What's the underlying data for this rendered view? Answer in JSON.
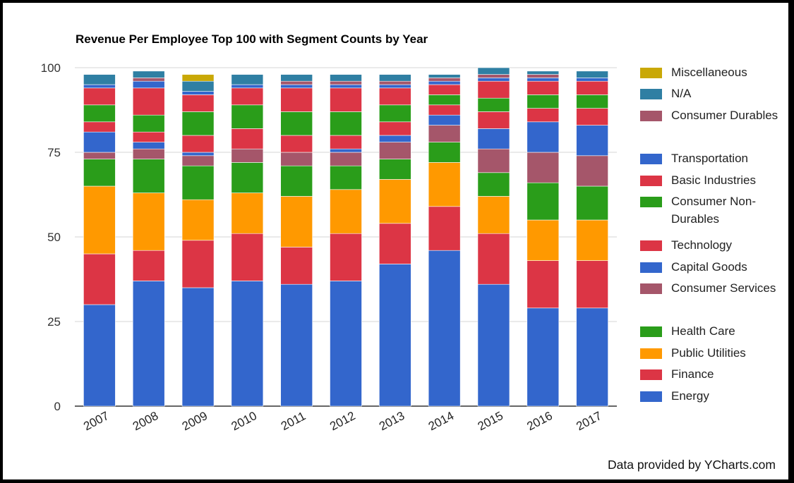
{
  "chart_data": {
    "type": "bar",
    "stacked": true,
    "title": "Revenue Per Employee Top 100 with Segment Counts by Year",
    "xlabel": "",
    "ylabel": "",
    "ylim": [
      0,
      100
    ],
    "yticks": [
      0,
      25,
      50,
      75,
      100
    ],
    "grid": true,
    "legend_position": "right",
    "categories": [
      "2007",
      "2008",
      "2009",
      "2010",
      "2011",
      "2012",
      "2013",
      "2014",
      "2015",
      "2016",
      "2017"
    ],
    "series": [
      {
        "name": "Energy",
        "color": "#3366cc",
        "values": [
          30,
          37,
          35,
          37,
          36,
          37,
          42,
          46,
          36,
          29,
          29
        ]
      },
      {
        "name": "Finance",
        "color": "#dc3545",
        "values": [
          15,
          9,
          14,
          14,
          11,
          14,
          12,
          13,
          15,
          14,
          14
        ]
      },
      {
        "name": "Public Utilities",
        "color": "#ff9900",
        "values": [
          20,
          17,
          12,
          12,
          15,
          13,
          13,
          13,
          11,
          12,
          12
        ]
      },
      {
        "name": "Health Care",
        "color": "#2a9d1a",
        "values": [
          8,
          10,
          10,
          9,
          9,
          7,
          6,
          6,
          7,
          11,
          10
        ]
      },
      {
        "name": "Consumer Services",
        "color": "#a5566a",
        "values": [
          2,
          3,
          3,
          4,
          4,
          4,
          5,
          5,
          7,
          9,
          9
        ]
      },
      {
        "name": "Capital Goods",
        "color": "#3366cc",
        "values": [
          6,
          2,
          1,
          0,
          0,
          1,
          2,
          3,
          6,
          9,
          9
        ]
      },
      {
        "name": "Technology",
        "color": "#dc3545",
        "values": [
          3,
          3,
          5,
          6,
          5,
          4,
          4,
          3,
          5,
          4,
          5
        ]
      },
      {
        "name": "Consumer Non-Durables",
        "color": "#2a9d1a",
        "values": [
          5,
          5,
          7,
          7,
          7,
          7,
          5,
          3,
          4,
          4,
          4
        ]
      },
      {
        "name": "Basic Industries",
        "color": "#dc3545",
        "values": [
          5,
          8,
          5,
          5,
          7,
          7,
          5,
          3,
          5,
          4,
          4
        ]
      },
      {
        "name": "Transportation",
        "color": "#3366cc",
        "values": [
          1,
          2,
          1,
          1,
          1,
          1,
          1,
          1,
          1,
          1,
          1
        ]
      },
      {
        "name": "Consumer Durables",
        "color": "#a5566a",
        "values": [
          0,
          1,
          0,
          0,
          1,
          1,
          1,
          1,
          1,
          1,
          0
        ]
      },
      {
        "name": "N/A",
        "color": "#2f7fa3",
        "values": [
          3,
          2,
          3,
          3,
          2,
          2,
          2,
          1,
          2,
          1,
          2
        ]
      },
      {
        "name": "Miscellaneous",
        "color": "#c9a806",
        "values": [
          0,
          0,
          2,
          0,
          0,
          0,
          0,
          0,
          0,
          0,
          0
        ]
      }
    ]
  },
  "footer": {
    "credit": "Data provided by YCharts.com"
  }
}
